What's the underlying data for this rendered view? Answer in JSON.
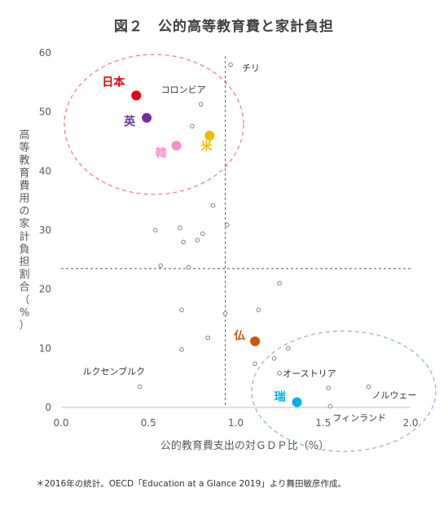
{
  "chart_data": {
    "type": "scatter",
    "title": "図２　公的高等教育費と家計負担",
    "xlabel": "公的教育費支出の対ＧＤＰ比（%）",
    "ylabel": "高等教育費用の家計負担割合（%）",
    "xlim": [
      0.0,
      2.0
    ],
    "ylim": [
      0,
      60
    ],
    "x_ticks": [
      "0.0",
      "0.5",
      "1.0",
      "1.5",
      "2.0"
    ],
    "y_ticks": [
      "0",
      "10",
      "20",
      "30",
      "40",
      "50",
      "60"
    ],
    "reference_lines": {
      "x": 0.94,
      "y": 23.5
    },
    "grid": false,
    "points": [
      {
        "x": 0.43,
        "y": 52.8,
        "label": "日本",
        "color": "#e60012",
        "highlight": true
      },
      {
        "x": 0.49,
        "y": 49.0,
        "label": "英",
        "color": "#7030a0",
        "highlight": true
      },
      {
        "x": 0.66,
        "y": 44.3,
        "label": "韓",
        "color": "#f48fd0",
        "highlight": true
      },
      {
        "x": 0.85,
        "y": 46.0,
        "label": "米",
        "color": "#f5b800",
        "highlight": true
      },
      {
        "x": 1.11,
        "y": 11.2,
        "label": "仏",
        "color": "#c55a11",
        "highlight": true
      },
      {
        "x": 1.35,
        "y": 0.9,
        "label": "瑞",
        "color": "#00b0f0",
        "highlight": true
      },
      {
        "x": 0.8,
        "y": 51.3,
        "label": "コロンビア"
      },
      {
        "x": 0.97,
        "y": 58.0,
        "label": "チリ"
      },
      {
        "x": 1.53,
        "y": 3.3,
        "label": "オーストリア"
      },
      {
        "x": 1.76,
        "y": 3.5,
        "label": "ノルウェー"
      },
      {
        "x": 1.54,
        "y": 0.2,
        "label": "フィンランド"
      },
      {
        "x": 0.45,
        "y": 3.5,
        "label": "ルクセンブルク"
      },
      {
        "x": 0.75,
        "y": 47.6
      },
      {
        "x": 0.78,
        "y": 28.3
      },
      {
        "x": 0.87,
        "y": 34.2
      },
      {
        "x": 0.95,
        "y": 30.9
      },
      {
        "x": 0.54,
        "y": 30.0
      },
      {
        "x": 0.68,
        "y": 30.4
      },
      {
        "x": 0.7,
        "y": 28.0
      },
      {
        "x": 0.81,
        "y": 29.4
      },
      {
        "x": 0.57,
        "y": 24.0
      },
      {
        "x": 0.73,
        "y": 23.7
      },
      {
        "x": 0.69,
        "y": 16.5
      },
      {
        "x": 0.94,
        "y": 15.9
      },
      {
        "x": 1.25,
        "y": 21.0
      },
      {
        "x": 1.13,
        "y": 16.5
      },
      {
        "x": 0.84,
        "y": 11.8
      },
      {
        "x": 0.69,
        "y": 9.8
      },
      {
        "x": 1.22,
        "y": 8.3
      },
      {
        "x": 1.3,
        "y": 10.0
      },
      {
        "x": 1.11,
        "y": 7.4
      },
      {
        "x": 1.25,
        "y": 5.8
      }
    ]
  },
  "footnote": "＊2016年の統計。OECD「Education at a Glance 2019」より舞田敏彦作成。",
  "colors": {
    "japan_group_ellipse": "#f08080",
    "nordic_group_ellipse": "#8fb4e3",
    "hollow_point": "#808080"
  }
}
